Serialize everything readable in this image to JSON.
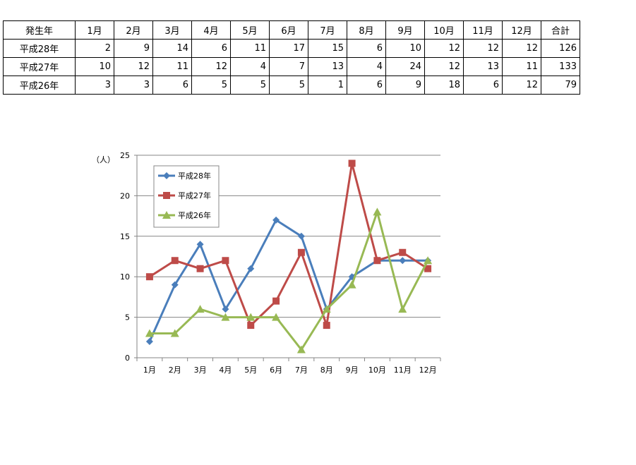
{
  "table": {
    "headers": [
      "発生年",
      "1月",
      "2月",
      "3月",
      "4月",
      "5月",
      "6月",
      "7月",
      "8月",
      "9月",
      "10月",
      "11月",
      "12月",
      "合計"
    ],
    "rows": [
      {
        "label": "平成28年",
        "values": [
          2,
          9,
          14,
          6,
          11,
          17,
          15,
          6,
          10,
          12,
          12,
          12
        ],
        "total": 126
      },
      {
        "label": "平成27年",
        "values": [
          10,
          12,
          11,
          12,
          4,
          7,
          13,
          4,
          24,
          12,
          13,
          11
        ],
        "total": 133
      },
      {
        "label": "平成26年",
        "values": [
          3,
          3,
          6,
          5,
          5,
          5,
          1,
          6,
          9,
          18,
          6,
          12
        ],
        "total": 79
      }
    ]
  },
  "chart_data": {
    "type": "line",
    "categories": [
      "1月",
      "2月",
      "3月",
      "4月",
      "5月",
      "6月",
      "7月",
      "8月",
      "9月",
      "10月",
      "11月",
      "12月"
    ],
    "series": [
      {
        "name": "平成28年",
        "values": [
          2,
          9,
          14,
          6,
          11,
          17,
          15,
          6,
          10,
          12,
          12,
          12
        ],
        "color": "#4a7ebb",
        "marker": "diamond"
      },
      {
        "name": "平成27年",
        "values": [
          10,
          12,
          11,
          12,
          4,
          7,
          13,
          4,
          24,
          12,
          13,
          11
        ],
        "color": "#be4b48",
        "marker": "square"
      },
      {
        "name": "平成26年",
        "values": [
          3,
          3,
          6,
          5,
          5,
          5,
          1,
          6,
          9,
          18,
          6,
          12
        ],
        "color": "#98b954",
        "marker": "triangle"
      }
    ],
    "ylabel": "（人）",
    "ylim": [
      0,
      25
    ],
    "yticks": [
      0,
      5,
      10,
      15,
      20,
      25
    ],
    "grid": true,
    "legend": "top-left"
  }
}
